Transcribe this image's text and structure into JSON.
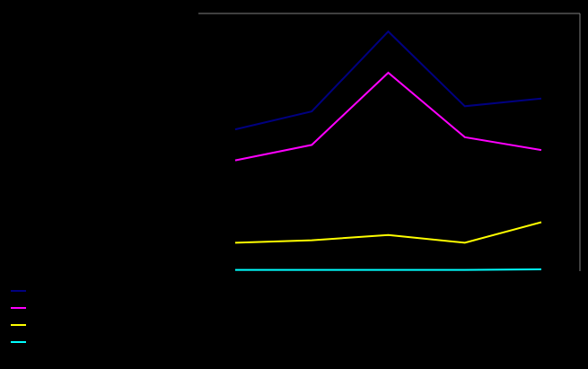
{
  "chart_data": {
    "type": "line",
    "title": "",
    "xlabel": "",
    "ylabel": "",
    "categories": [
      "",
      "",
      "",
      "",
      ""
    ],
    "ylim": [
      0,
      100
    ],
    "grid": false,
    "legend_placement": "bottom-left",
    "background_color": "#000000",
    "axis_color": "#808080",
    "series": [
      {
        "name": "",
        "color": "#000080",
        "values": [
          55,
          62,
          93,
          64,
          67
        ]
      },
      {
        "name": "",
        "color": "#ff00ff",
        "values": [
          43,
          49,
          77,
          52,
          47
        ]
      },
      {
        "name": "",
        "color": "#ffff00",
        "values": [
          11,
          12,
          14,
          11,
          19
        ]
      },
      {
        "name": "",
        "color": "#00ffff",
        "values": [
          0.5,
          0.5,
          0.5,
          0.5,
          0.7
        ]
      }
    ]
  }
}
